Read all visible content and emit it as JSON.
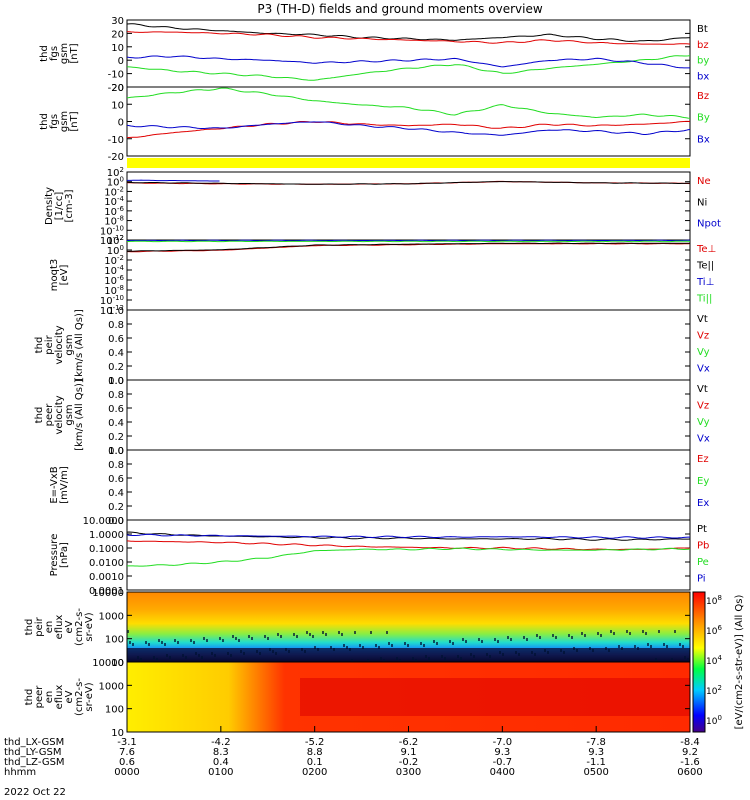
{
  "title": "P3 (TH-D) fields and ground moments overview",
  "colors": {
    "black": "#000000",
    "red": "#e00000",
    "green": "#22dd22",
    "blue": "#0000cc",
    "yellow": "#ffff00"
  },
  "chart_data": [
    {
      "type": "line",
      "ylabel": [
        "thd",
        "fgs",
        "gsm",
        "[nT]"
      ],
      "ylim": [
        -20,
        30
      ],
      "yticks": [
        "30",
        "20",
        "10",
        "0",
        "-10",
        "-20"
      ],
      "legend": [
        {
          "label": "Bt",
          "color": "black"
        },
        {
          "label": "bz",
          "color": "red"
        },
        {
          "label": "by",
          "color": "green"
        },
        {
          "label": "bx",
          "color": "blue"
        }
      ],
      "x_hours": [
        0,
        0.5,
        1,
        1.5,
        2,
        2.5,
        3,
        3.5,
        4,
        4.5,
        5,
        5.5,
        6
      ],
      "series": [
        {
          "name": "Bt",
          "color": "black",
          "values": [
            27,
            24,
            22,
            20,
            19,
            17,
            16,
            15,
            17,
            19,
            16,
            14,
            17
          ]
        },
        {
          "name": "bz",
          "color": "red",
          "values": [
            21,
            21,
            20,
            19,
            17,
            16,
            15,
            14,
            13,
            15,
            13,
            12,
            12
          ]
        },
        {
          "name": "by",
          "color": "green",
          "values": [
            -5,
            -8,
            -10,
            -12,
            -15,
            -10,
            -6,
            -3,
            -10,
            -6,
            -3,
            0,
            4
          ]
        },
        {
          "name": "bx",
          "color": "blue",
          "values": [
            2,
            3,
            1,
            0,
            -2,
            -1,
            0,
            1,
            -5,
            0,
            1,
            -2,
            -6
          ]
        }
      ]
    },
    {
      "type": "line",
      "ylabel": [
        "thd",
        "fgs",
        "gsm",
        "[nT]"
      ],
      "ylim": [
        -25,
        25
      ],
      "yticks": [
        "20",
        "10",
        "0",
        "-10",
        "-20"
      ],
      "legend": [
        {
          "label": "Bz",
          "color": "red"
        },
        {
          "label": "By",
          "color": "green"
        },
        {
          "label": "Bx",
          "color": "blue"
        }
      ],
      "x_hours": [
        0,
        0.5,
        1,
        1.5,
        2,
        2.5,
        3,
        3.5,
        4,
        4.5,
        5,
        5.5,
        6
      ],
      "series": [
        {
          "name": "Bz",
          "color": "red",
          "values": [
            -12,
            -8,
            -5,
            -2,
            0,
            -2,
            -3,
            -2,
            -5,
            -2,
            -3,
            -2,
            0
          ]
        },
        {
          "name": "By",
          "color": "green",
          "values": [
            17,
            21,
            24,
            20,
            15,
            12,
            10,
            5,
            12,
            6,
            3,
            5,
            3
          ]
        },
        {
          "name": "Bx",
          "color": "blue",
          "values": [
            -3,
            -4,
            -5,
            -2,
            0,
            -3,
            -5,
            -8,
            -10,
            -6,
            -7,
            -9,
            -6
          ]
        }
      ]
    },
    {
      "type": "line",
      "ylabel": [
        "Density",
        "[1/cc]",
        "[cm-3]"
      ],
      "ylim_log": [
        -12,
        3
      ],
      "yticks": [
        "10^2",
        "10^0",
        "10^-2",
        "10^-4",
        "10^-6",
        "10^-8",
        "10^-10",
        "10^-12"
      ],
      "legend": [
        {
          "label": "Ne",
          "color": "red"
        },
        {
          "label": "Ni",
          "color": "black"
        },
        {
          "label": "Npot",
          "color": "blue"
        }
      ],
      "x_hours": [
        0,
        1,
        2,
        3,
        4,
        5,
        6
      ],
      "series": [
        {
          "name": "Ne",
          "color": "red",
          "values_log": [
            0.6,
            0.4,
            0.3,
            0.4,
            0.9,
            0.6,
            0.5
          ]
        },
        {
          "name": "Ni",
          "color": "black",
          "values_log": [
            0.7,
            0.5,
            0.3,
            0.4,
            0.9,
            0.6,
            0.5
          ]
        },
        {
          "name": "Npot",
          "color": "blue",
          "values_log": [
            1.2,
            1.0,
            null,
            null,
            null,
            null,
            null
          ]
        }
      ]
    },
    {
      "type": "line",
      "ylabel": [
        "moqt3",
        "[eV]"
      ],
      "ylim_log": [
        -12,
        3
      ],
      "yticks": [
        "10^2",
        "10^0",
        "10^-2",
        "10^-4",
        "10^-6",
        "10^-8",
        "10^-10",
        "10^-12"
      ],
      "legend": [
        {
          "label": "Te⊥",
          "color": "red"
        },
        {
          "label": "Te||",
          "color": "black"
        },
        {
          "label": "Ti⊥",
          "color": "blue"
        },
        {
          "label": "Ti||",
          "color": "green"
        }
      ],
      "x_hours": [
        0,
        1,
        2,
        3,
        4,
        5,
        6
      ],
      "series": [
        {
          "name": "Te⊥",
          "color": "red",
          "values_log": [
            0.5,
            0.8,
            1.8,
            2.0,
            2.2,
            2.2,
            2.2
          ]
        },
        {
          "name": "Te||",
          "color": "black",
          "values_log": [
            0.6,
            0.9,
            1.9,
            2.1,
            2.3,
            2.3,
            2.3
          ]
        },
        {
          "name": "Ti⊥",
          "color": "blue",
          "values_log": [
            2.9,
            2.9,
            2.9,
            2.9,
            2.9,
            2.9,
            2.9
          ]
        },
        {
          "name": "Ti||",
          "color": "green",
          "values_log": [
            2.7,
            2.7,
            2.7,
            2.7,
            2.7,
            2.7,
            2.7
          ]
        }
      ]
    },
    {
      "type": "line",
      "ylabel": [
        "thd",
        "peir",
        "velocity",
        "gsm",
        "[km/s (All Qs)]"
      ],
      "ylim": [
        0,
        1
      ],
      "yticks": [
        "1.0",
        "0.8",
        "0.6",
        "0.4",
        "0.2",
        "0.0"
      ],
      "legend": [
        {
          "label": "Vt",
          "color": "black"
        },
        {
          "label": "Vz",
          "color": "red"
        },
        {
          "label": "Vy",
          "color": "green"
        },
        {
          "label": "Vx",
          "color": "blue"
        }
      ],
      "series": []
    },
    {
      "type": "line",
      "ylabel": [
        "thd",
        "peer",
        "velocity",
        "gsm",
        "[km/s (All Qs)]"
      ],
      "ylim": [
        0,
        1
      ],
      "yticks": [
        "1.0",
        "0.8",
        "0.6",
        "0.4",
        "0.2",
        "0.0"
      ],
      "legend": [
        {
          "label": "Vt",
          "color": "black"
        },
        {
          "label": "Vz",
          "color": "red"
        },
        {
          "label": "Vy",
          "color": "green"
        },
        {
          "label": "Vx",
          "color": "blue"
        }
      ],
      "series": []
    },
    {
      "type": "line",
      "ylabel": [
        "E=-VxB",
        "[mV/m]"
      ],
      "ylim": [
        0,
        1
      ],
      "yticks": [
        "1.0",
        "0.8",
        "0.6",
        "0.4",
        "0.2",
        "0.0"
      ],
      "legend": [
        {
          "label": "Ez",
          "color": "red"
        },
        {
          "label": "Ey",
          "color": "green"
        },
        {
          "label": "Ex",
          "color": "blue"
        }
      ],
      "series": []
    },
    {
      "type": "line",
      "ylabel": [
        "Pressure",
        "[nPa]"
      ],
      "ylim_log": [
        -4,
        1
      ],
      "yticks": [
        "10.0000",
        "1.0000",
        "0.1000",
        "0.0100",
        "0.0010",
        "0.0001"
      ],
      "legend": [
        {
          "label": "Pt",
          "color": "black"
        },
        {
          "label": "Pb",
          "color": "red"
        },
        {
          "label": "Pe",
          "color": "green"
        },
        {
          "label": "Pi",
          "color": "blue"
        }
      ],
      "x_hours": [
        0,
        0.5,
        1,
        1.5,
        2,
        2.5,
        3,
        3.5,
        4,
        4.5,
        5,
        5.5,
        6
      ],
      "series": [
        {
          "name": "Pt",
          "color": "black",
          "values_log": [
            0.1,
            -0.05,
            -0.15,
            -0.2,
            -0.25,
            -0.3,
            -0.3,
            -0.35,
            -0.35,
            -0.35,
            -0.4,
            -0.4,
            -0.35
          ]
        },
        {
          "name": "Pb",
          "color": "red",
          "values_log": [
            -0.5,
            -0.55,
            -0.6,
            -0.7,
            -0.8,
            -0.9,
            -0.95,
            -1.0,
            -1.0,
            -1.05,
            -1.1,
            -1.1,
            -1.0
          ]
        },
        {
          "name": "Pe",
          "color": "green",
          "values_log": [
            -2.3,
            -2.2,
            -2.0,
            -1.7,
            -1.2,
            -1.1,
            -1.1,
            -1.05,
            -1.1,
            -1.15,
            -1.15,
            -1.1,
            -1.05
          ]
        },
        {
          "name": "Pi",
          "color": "blue",
          "values_log": [
            -0.05,
            -0.1,
            -0.12,
            -0.15,
            -0.18,
            -0.2,
            -0.2,
            -0.22,
            -0.2,
            -0.22,
            -0.25,
            -0.25,
            -0.25
          ]
        }
      ]
    },
    {
      "type": "heatmap",
      "ylabel": [
        "thd",
        "peir",
        "en",
        "eflux",
        "eV",
        "(cm2-s-",
        "sr-eV)"
      ],
      "yticks": [
        "10000",
        "1000",
        "100",
        "10"
      ]
    },
    {
      "type": "heatmap",
      "ylabel": [
        "thd",
        "peer",
        "en",
        "eflux",
        "eV",
        "(cm2-s-",
        "sr-eV)"
      ],
      "yticks": [
        "10000",
        "1000",
        "100",
        "10"
      ]
    }
  ],
  "colorbar": {
    "ticks": [
      "10^8",
      "10^6",
      "10^4",
      "10^2",
      "10^0"
    ],
    "label": "[eV/(cm2-s-str-eV)] (All Qs)"
  },
  "x_axis": {
    "rows": [
      {
        "label": "thd_LX-GSM",
        "values": [
          "-3.1",
          "-4.2",
          "-5.2",
          "-6.2",
          "-7.0",
          "-7.8",
          "-8.4"
        ]
      },
      {
        "label": "thd_LY-GSM",
        "values": [
          "7.6",
          "8.3",
          "8.8",
          "9.1",
          "9.3",
          "9.3",
          "9.2"
        ]
      },
      {
        "label": "thd_LZ-GSM",
        "values": [
          "0.6",
          "0.4",
          "0.1",
          "-0.2",
          "-0.7",
          "-1.1",
          "-1.6"
        ]
      },
      {
        "label": "hhmm",
        "values": [
          "0000",
          "0100",
          "0200",
          "0300",
          "0400",
          "0500",
          "0600"
        ]
      }
    ],
    "date": "2022 Oct 22"
  }
}
